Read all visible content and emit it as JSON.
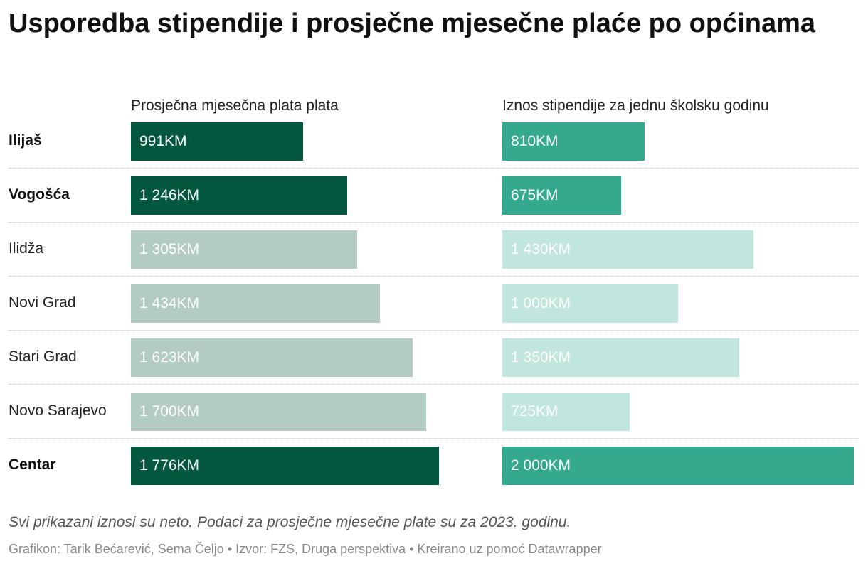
{
  "title": "Usporedba stipendije i prosječne mjesečne plaće po općinama",
  "footnote": "Svi prikazani iznosi su neto. Podaci za prosječne mjesečne plate su za 2023. godinu.",
  "credits": "Grafikon: Tarik Bećarević, Sema Čeljo • Izvor: FZS, Druga perspektiva • Kreirano uz pomoć Datawrapper",
  "colors": {
    "salary_highlight": "#02573f",
    "salary_muted": "#b2ccc5",
    "stipend_highlight": "#34a98d",
    "stipend_muted": "#c1e6de"
  },
  "chart_data": {
    "type": "bar",
    "orientation": "horizontal",
    "unit": "KM",
    "categories": [
      "Ilijaš",
      "Vogošća",
      "Ilidža",
      "Novi Grad",
      "Stari Grad",
      "Novo Sarajevo",
      "Centar"
    ],
    "highlighted": [
      true,
      true,
      false,
      false,
      false,
      false,
      true
    ],
    "series": [
      {
        "name": "Prosječna mjesečna plata plata",
        "values": [
          991,
          1246,
          1305,
          1434,
          1623,
          1700,
          1776
        ],
        "labels": [
          "991KM",
          "1 246KM",
          "1 305KM",
          "1 434KM",
          "1 623KM",
          "1 700KM",
          "1 776KM"
        ],
        "xlim": [
          0,
          2000
        ]
      },
      {
        "name": "Iznos stipendije za jednu školsku godinu",
        "values": [
          810,
          675,
          1430,
          1000,
          1350,
          725,
          2000
        ],
        "labels": [
          "810KM",
          "675KM",
          "1 430KM",
          "1 000KM",
          "1 350KM",
          "725KM",
          "2 000KM"
        ],
        "xlim": [
          0,
          2000
        ]
      }
    ]
  }
}
